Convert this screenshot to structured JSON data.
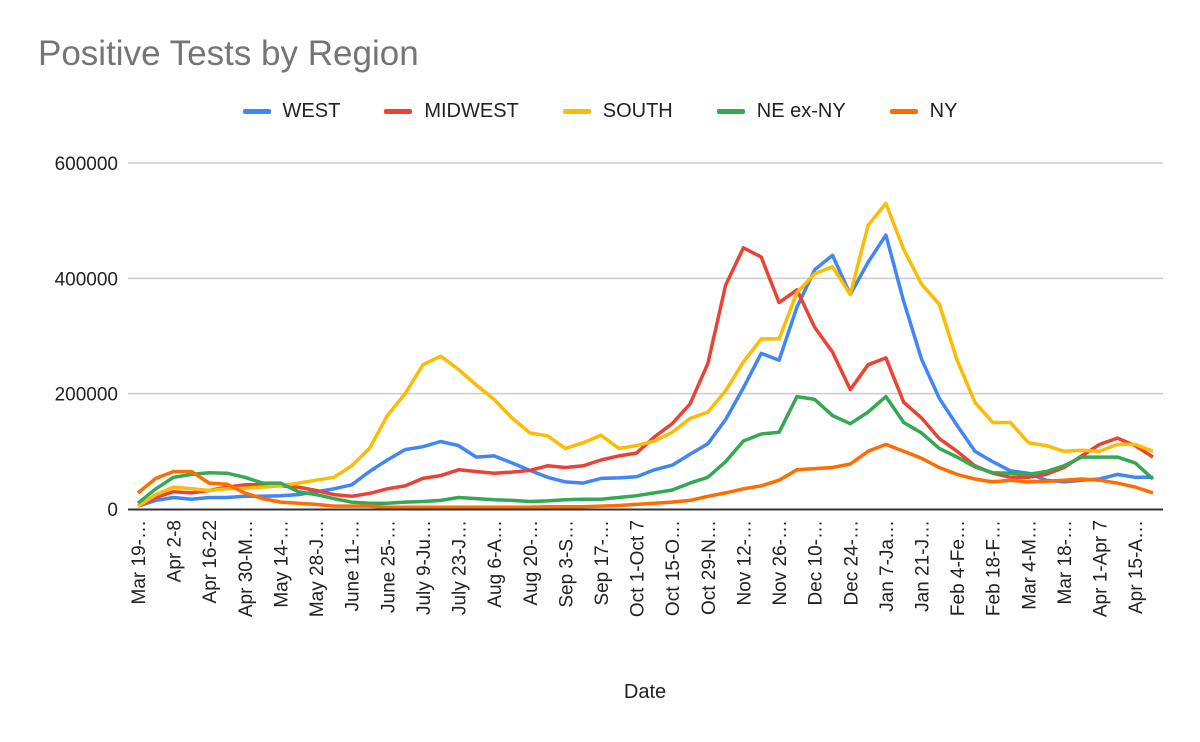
{
  "chart_data": {
    "type": "line",
    "title": "Positive Tests by Region",
    "xlabel": "Date",
    "ylabel": "",
    "ylim": [
      0,
      600000
    ],
    "yticks": [
      "0",
      "200000",
      "400000",
      "600000"
    ],
    "grid": true,
    "legend_position": "top",
    "x_tick_labels": [
      "Mar 19-…",
      "Apr 2-8",
      "Apr 16-22",
      "Apr 30-M…",
      "May 14-…",
      "May 28-J…",
      "June 11-…",
      "June 25-…",
      "July 9-Ju…",
      "July 23-J…",
      "Aug 6-A…",
      "Aug 20-…",
      "Sep 3-S…",
      "Sep 17-…",
      "Oct 1-Oct 7",
      "Oct 15-O…",
      "Oct 29-N…",
      "Nov 12-…",
      "Nov 26-…",
      "Dec 10-…",
      "Dec 24-…",
      "Jan 7-Ja…",
      "Jan 21-J…",
      "Feb 4-Fe…",
      "Feb 18-F…",
      "Mar 4-M…",
      "Mar 18-…",
      "Apr 1-Apr 7",
      "Apr 15-A…"
    ],
    "series": [
      {
        "name": "WEST",
        "color": "#4285f4",
        "values": [
          5000,
          15000,
          20000,
          17000,
          20000,
          20000,
          22000,
          22000,
          23000,
          25000,
          30000,
          35000,
          42000,
          65000,
          85000,
          103000,
          108000,
          117000,
          110000,
          90000,
          92000,
          80000,
          67000,
          55000,
          47000,
          45000,
          53000,
          54000,
          56000,
          68000,
          76000,
          95000,
          113000,
          155000,
          210000,
          270000,
          258000,
          350000,
          415000,
          440000,
          372000,
          428000,
          475000,
          360000,
          260000,
          192000,
          145000,
          100000,
          82000,
          66000,
          62000,
          50000,
          47000,
          50000,
          52000,
          60000,
          55000,
          55000
        ]
      },
      {
        "name": "MIDWEST",
        "color": "#ea4335",
        "values": [
          5000,
          20000,
          30000,
          28000,
          32000,
          38000,
          42000,
          42000,
          40000,
          38000,
          32000,
          25000,
          22000,
          27000,
          35000,
          40000,
          53000,
          58000,
          68000,
          65000,
          62000,
          64000,
          67000,
          75000,
          72000,
          75000,
          85000,
          92000,
          97000,
          125000,
          148000,
          182000,
          252000,
          388000,
          453000,
          437000,
          358000,
          380000,
          315000,
          272000,
          207000,
          250000,
          262000,
          185000,
          158000,
          122000,
          100000,
          75000,
          62000,
          55000,
          55000,
          60000,
          72000,
          92000,
          112000,
          123000,
          110000,
          90000
        ]
      },
      {
        "name": "SOUTH",
        "color": "#fbbc04",
        "values": [
          5000,
          25000,
          38000,
          35000,
          32000,
          35000,
          36000,
          38000,
          40000,
          45000,
          50000,
          55000,
          75000,
          105000,
          162000,
          200000,
          250000,
          265000,
          242000,
          215000,
          190000,
          158000,
          132000,
          127000,
          105000,
          115000,
          128000,
          105000,
          110000,
          118000,
          133000,
          157000,
          168000,
          205000,
          255000,
          295000,
          295000,
          375000,
          408000,
          420000,
          372000,
          492000,
          530000,
          450000,
          390000,
          355000,
          258000,
          185000,
          150000,
          150000,
          115000,
          110000,
          100000,
          102000,
          100000,
          112000,
          112000,
          100000
        ]
      },
      {
        "name": "NE ex-NY",
        "color": "#34a853",
        "values": [
          10000,
          35000,
          55000,
          60000,
          63000,
          62000,
          55000,
          45000,
          45000,
          30000,
          25000,
          18000,
          12000,
          10000,
          10000,
          12000,
          13000,
          15000,
          20000,
          18000,
          16000,
          15000,
          13000,
          14000,
          16000,
          17000,
          17000,
          20000,
          23000,
          28000,
          33000,
          45000,
          55000,
          82000,
          118000,
          130000,
          133000,
          195000,
          190000,
          162000,
          148000,
          168000,
          195000,
          150000,
          132000,
          105000,
          90000,
          73000,
          63000,
          62000,
          60000,
          65000,
          75000,
          90000,
          90000,
          90000,
          80000,
          52000
        ]
      },
      {
        "name": "NY",
        "color": "#ff6d01",
        "values": [
          28000,
          53000,
          65000,
          65000,
          45000,
          43000,
          28000,
          18000,
          12000,
          10000,
          8000,
          5000,
          5000,
          5000,
          3000,
          3000,
          3000,
          3000,
          3000,
          3000,
          3000,
          3000,
          3000,
          4000,
          4000,
          4000,
          5000,
          6000,
          8000,
          10000,
          12000,
          15000,
          22000,
          28000,
          35000,
          40000,
          50000,
          68000,
          70000,
          72000,
          78000,
          100000,
          112000,
          100000,
          88000,
          72000,
          60000,
          52000,
          47000,
          50000,
          47000,
          48000,
          50000,
          52000,
          50000,
          45000,
          38000,
          28000
        ]
      }
    ]
  }
}
